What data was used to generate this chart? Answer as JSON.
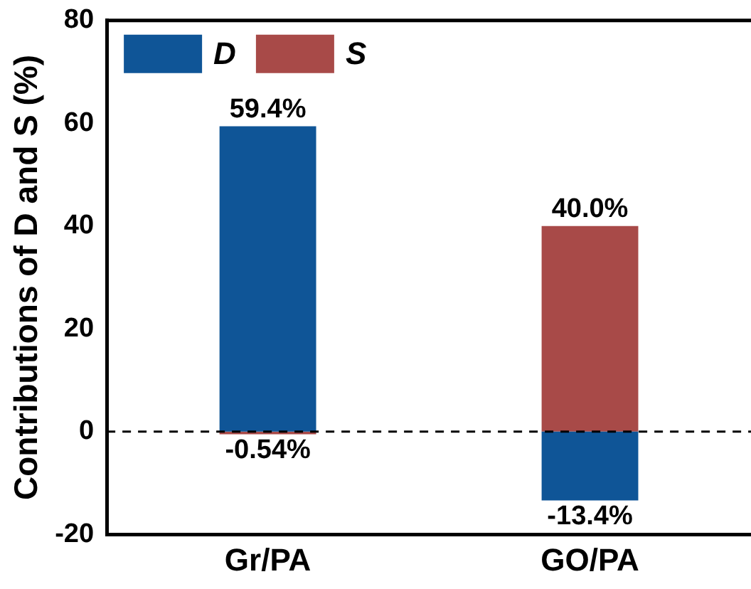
{
  "chart_data": {
    "type": "bar",
    "ylabel": "Contributions of D and S (%)",
    "categories": [
      "Gr/PA",
      "GO/PA"
    ],
    "stacked": true,
    "series": [
      {
        "name": "D",
        "color": "#0f5597",
        "values": [
          59.4,
          -13.4
        ],
        "value_labels": [
          "59.4%",
          "-13.4%"
        ]
      },
      {
        "name": "S",
        "color": "#a84a48",
        "values": [
          -0.54,
          40.0
        ],
        "value_labels": [
          "-0.54%",
          "40.0%"
        ]
      }
    ],
    "ylim": [
      -20,
      80
    ],
    "yticks": [
      -20,
      0,
      20,
      40,
      60,
      80
    ],
    "grid": false,
    "legend": "top left",
    "ref_lines": [
      {
        "axis": "y",
        "value": 0,
        "line_style": "dashed",
        "color": "#000000"
      }
    ]
  }
}
